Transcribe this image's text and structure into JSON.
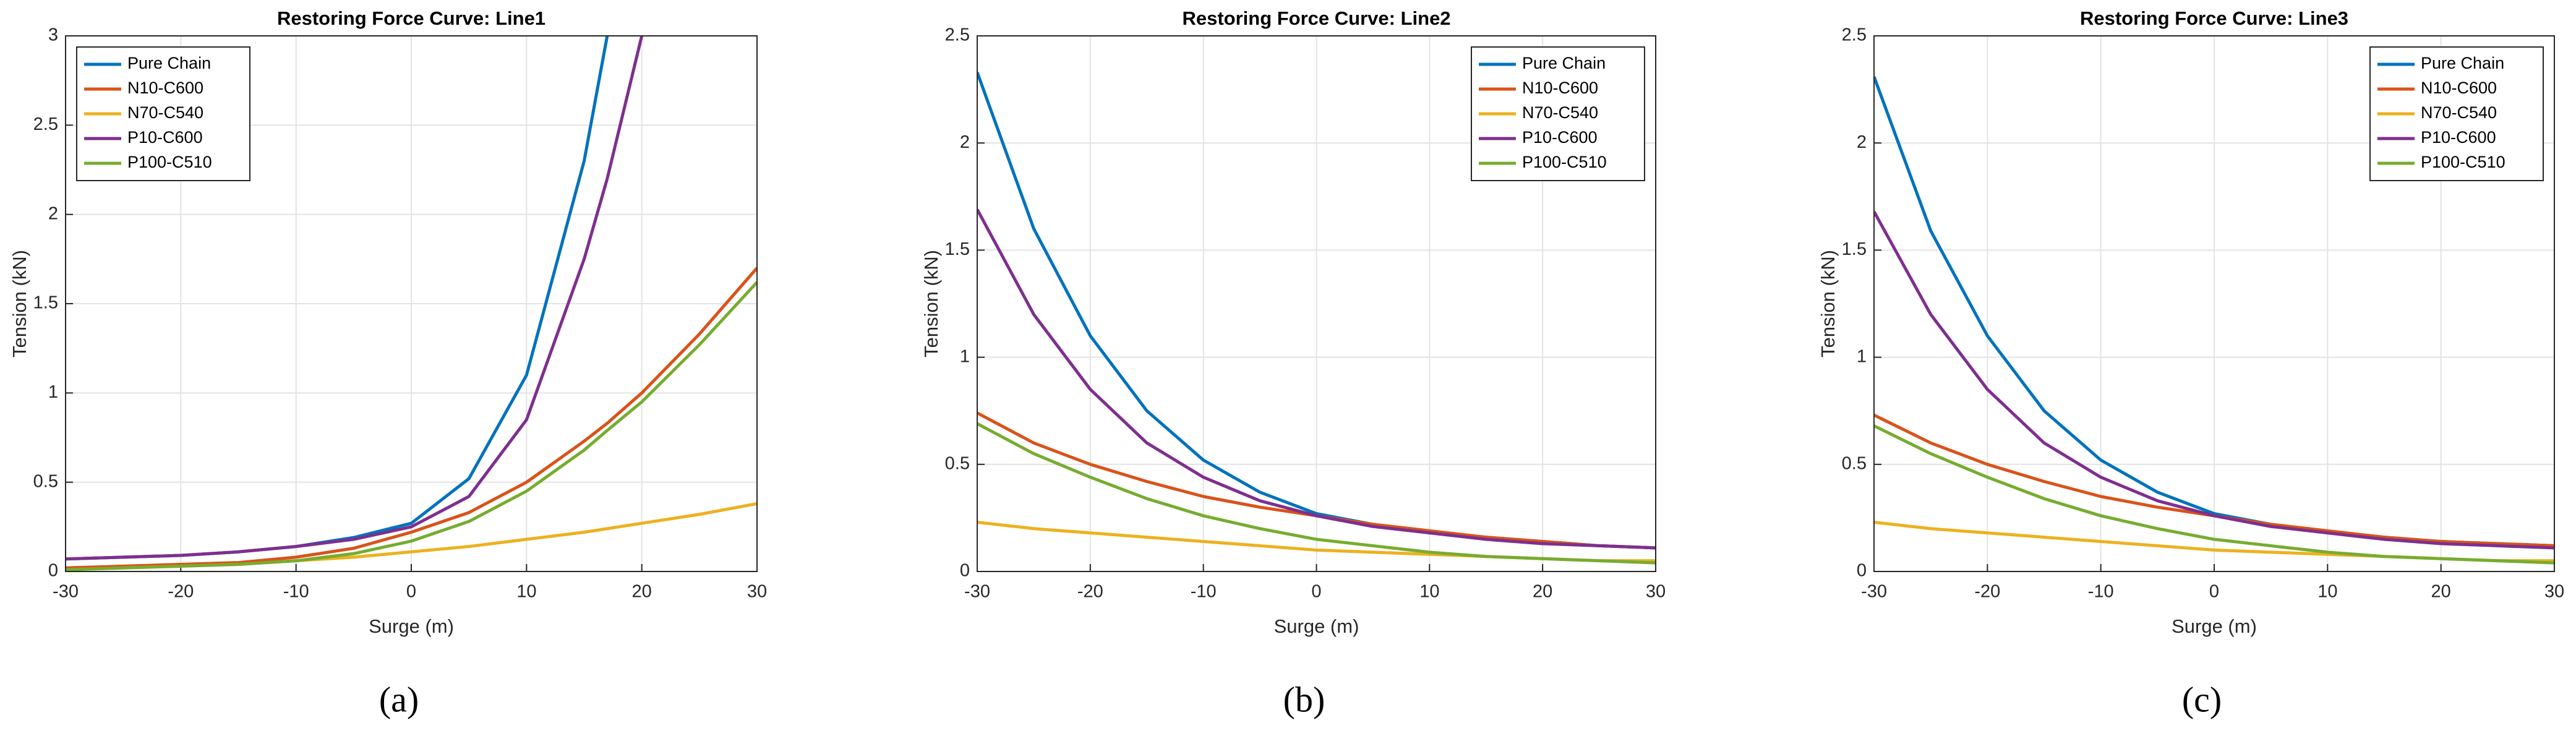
{
  "chart_data": [
    {
      "type": "line",
      "title": "Restoring Force Curve: Line1",
      "xlabel": "Surge (m)",
      "ylabel": "Tension (kN)",
      "caption": "(a)",
      "x": [
        -30,
        -25,
        -20,
        -15,
        -10,
        -5,
        0,
        5,
        10,
        15,
        17,
        20,
        25,
        30
      ],
      "xlim": [
        -30,
        30
      ],
      "xticks": [
        -30,
        -20,
        -10,
        0,
        10,
        20,
        30
      ],
      "ylim": [
        0,
        3
      ],
      "yticks": [
        0,
        0.5,
        1,
        1.5,
        2,
        2.5,
        3
      ],
      "grid": true,
      "legend": "upper left",
      "series": [
        {
          "name": "Pure Chain",
          "color": "#0072BD",
          "values": [
            0.07,
            0.08,
            0.09,
            0.11,
            0.14,
            0.19,
            0.27,
            0.52,
            1.1,
            2.3,
            3.0,
            null,
            null,
            null
          ]
        },
        {
          "name": "N10-C600",
          "color": "#D95319",
          "values": [
            0.02,
            0.03,
            0.04,
            0.05,
            0.08,
            0.13,
            0.22,
            0.33,
            0.5,
            0.73,
            0.83,
            1.0,
            1.33,
            1.7
          ]
        },
        {
          "name": "N70-C540",
          "color": "#EDB120",
          "values": [
            0.01,
            0.02,
            0.03,
            0.04,
            0.06,
            0.08,
            0.11,
            0.14,
            0.18,
            0.22,
            0.24,
            0.27,
            0.32,
            0.38
          ]
        },
        {
          "name": "P10-C600",
          "color": "#7E2F8E",
          "values": [
            0.07,
            0.08,
            0.09,
            0.11,
            0.14,
            0.18,
            0.25,
            0.42,
            0.85,
            1.75,
            2.2,
            3.0,
            null,
            null
          ]
        },
        {
          "name": "P100-C510",
          "color": "#77AC30",
          "values": [
            0.01,
            0.02,
            0.03,
            0.04,
            0.06,
            0.1,
            0.17,
            0.28,
            0.45,
            0.68,
            0.79,
            0.95,
            1.27,
            1.62
          ]
        }
      ]
    },
    {
      "type": "line",
      "title": "Restoring Force Curve: Line2",
      "xlabel": "Surge (m)",
      "ylabel": "Tension (kN)",
      "caption": "(b)",
      "x": [
        -30,
        -25,
        -20,
        -15,
        -10,
        -5,
        0,
        5,
        10,
        15,
        20,
        25,
        30
      ],
      "xlim": [
        -30,
        30
      ],
      "xticks": [
        -30,
        -20,
        -10,
        0,
        10,
        20,
        30
      ],
      "ylim": [
        0,
        2.5
      ],
      "yticks": [
        0,
        0.5,
        1,
        1.5,
        2,
        2.5
      ],
      "grid": true,
      "legend": "upper right",
      "series": [
        {
          "name": "Pure Chain",
          "color": "#0072BD",
          "values": [
            2.33,
            1.6,
            1.1,
            0.75,
            0.52,
            0.37,
            0.27,
            0.22,
            0.18,
            0.16,
            0.14,
            0.12,
            0.11
          ]
        },
        {
          "name": "N10-C600",
          "color": "#D95319",
          "values": [
            0.74,
            0.6,
            0.5,
            0.42,
            0.35,
            0.3,
            0.26,
            0.22,
            0.19,
            0.16,
            0.14,
            0.12,
            0.11
          ]
        },
        {
          "name": "N70-C540",
          "color": "#EDB120",
          "values": [
            0.23,
            0.2,
            0.18,
            0.16,
            0.14,
            0.12,
            0.1,
            0.09,
            0.08,
            0.07,
            0.06,
            0.05,
            0.05
          ]
        },
        {
          "name": "P10-C600",
          "color": "#7E2F8E",
          "values": [
            1.69,
            1.2,
            0.85,
            0.6,
            0.44,
            0.33,
            0.26,
            0.21,
            0.18,
            0.15,
            0.13,
            0.12,
            0.11
          ]
        },
        {
          "name": "P100-C510",
          "color": "#77AC30",
          "values": [
            0.69,
            0.55,
            0.44,
            0.34,
            0.26,
            0.2,
            0.15,
            0.12,
            0.09,
            0.07,
            0.06,
            0.05,
            0.04
          ]
        }
      ]
    },
    {
      "type": "line",
      "title": "Restoring Force Curve: Line3",
      "xlabel": "Surge (m)",
      "ylabel": "Tension (kN)",
      "caption": "(c)",
      "x": [
        -30,
        -25,
        -20,
        -15,
        -10,
        -5,
        0,
        5,
        10,
        15,
        20,
        25,
        30
      ],
      "xlim": [
        -30,
        30
      ],
      "xticks": [
        -30,
        -20,
        -10,
        0,
        10,
        20,
        30
      ],
      "ylim": [
        0,
        2.5
      ],
      "yticks": [
        0,
        0.5,
        1,
        1.5,
        2,
        2.5
      ],
      "grid": true,
      "legend": "upper right",
      "series": [
        {
          "name": "Pure Chain",
          "color": "#0072BD",
          "values": [
            2.31,
            1.59,
            1.1,
            0.75,
            0.52,
            0.37,
            0.27,
            0.22,
            0.18,
            0.16,
            0.14,
            0.13,
            0.12
          ]
        },
        {
          "name": "N10-C600",
          "color": "#D95319",
          "values": [
            0.73,
            0.6,
            0.5,
            0.42,
            0.35,
            0.3,
            0.26,
            0.22,
            0.19,
            0.16,
            0.14,
            0.13,
            0.12
          ]
        },
        {
          "name": "N70-C540",
          "color": "#EDB120",
          "values": [
            0.23,
            0.2,
            0.18,
            0.16,
            0.14,
            0.12,
            0.1,
            0.09,
            0.08,
            0.07,
            0.06,
            0.05,
            0.05
          ]
        },
        {
          "name": "P10-C600",
          "color": "#7E2F8E",
          "values": [
            1.68,
            1.2,
            0.85,
            0.6,
            0.44,
            0.33,
            0.26,
            0.21,
            0.18,
            0.15,
            0.13,
            0.12,
            0.11
          ]
        },
        {
          "name": "P100-C510",
          "color": "#77AC30",
          "values": [
            0.68,
            0.55,
            0.44,
            0.34,
            0.26,
            0.2,
            0.15,
            0.12,
            0.09,
            0.07,
            0.06,
            0.05,
            0.04
          ]
        }
      ]
    }
  ]
}
